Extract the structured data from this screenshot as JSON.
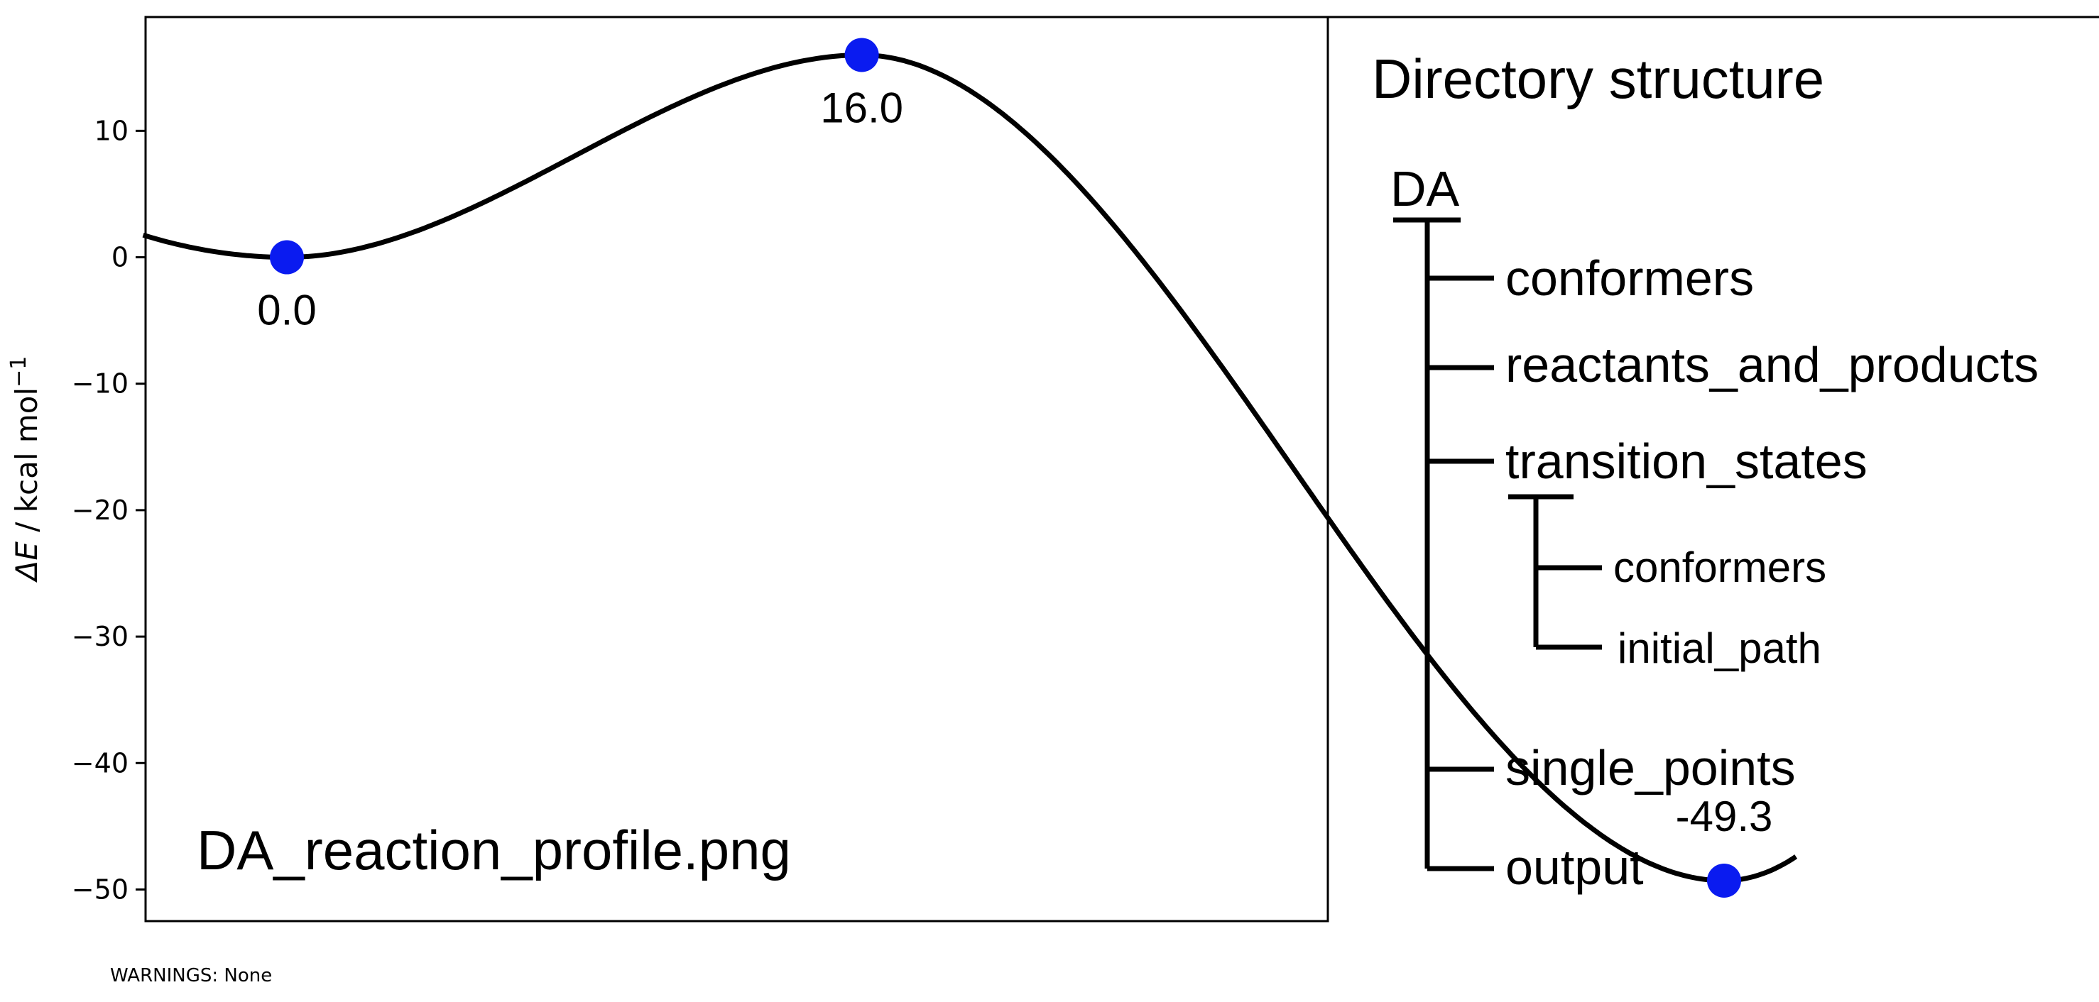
{
  "chart_data": {
    "type": "line",
    "ylabel_symbol": "ΔE",
    "ylabel_unit": " / kcal mol",
    "ylabel_exp": "−1",
    "ylim": [
      -52.5,
      19
    ],
    "yticks": [
      10,
      0,
      -10,
      -20,
      -30,
      -40,
      -50
    ],
    "ytick_labels": [
      "10",
      "0",
      "−10",
      "−20",
      "−30",
      "−40",
      "−50"
    ],
    "curve_xlim": [
      -0.4,
      4.2
    ],
    "points": [
      {
        "x": 0,
        "y": 0.0,
        "label": "0.0"
      },
      {
        "x": 1.6,
        "y": 16.0,
        "label": "16.0"
      },
      {
        "x": 4.0,
        "y": -49.3,
        "label": "-49.3"
      }
    ],
    "line_color": "#000000",
    "point_color": "#0a1bf0",
    "annotation": "DA_reaction_profile.png"
  },
  "directory": {
    "title": "Directory structure",
    "root": "DA",
    "children": [
      {
        "label": "conformers"
      },
      {
        "label": "reactants_and_products"
      },
      {
        "label": "transition_states",
        "children": [
          {
            "label": "conformers"
          },
          {
            "label": "initial_path"
          }
        ]
      },
      {
        "label": "single_points"
      },
      {
        "label": "output"
      }
    ]
  },
  "footer": {
    "warnings": "WARNINGS: None"
  }
}
